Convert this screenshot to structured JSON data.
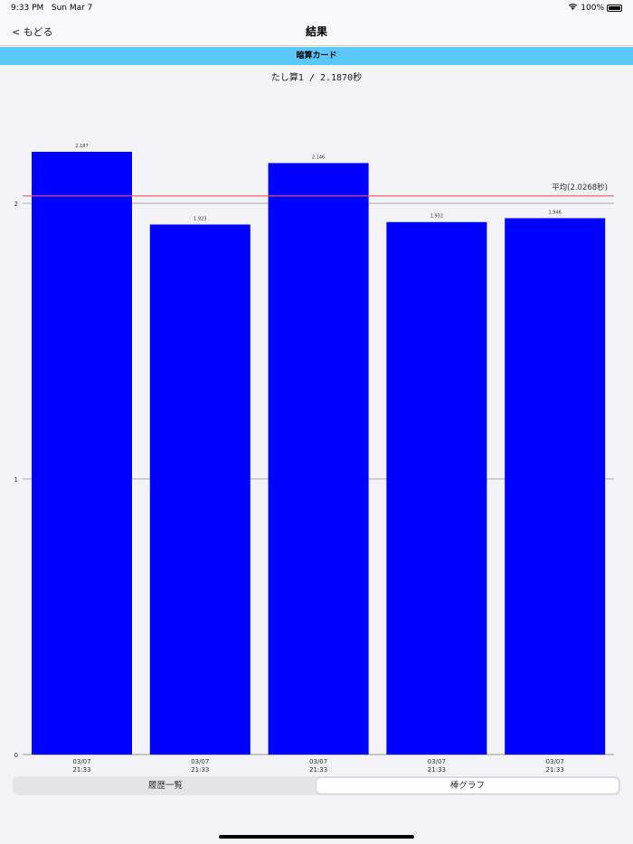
{
  "status_bar": {
    "time": "9:33 PM",
    "date": "Sun Mar 7",
    "battery": "100%",
    "wifi_icon": "wifi-icon",
    "battery_icon": "battery-icon"
  },
  "nav": {
    "back_label": "< もどる",
    "title": "結果"
  },
  "banner": "暗算カード",
  "subtitle": "たし算1 / 2.1870秒",
  "chart_data": {
    "type": "bar",
    "categories": [
      "03/07\n21:33",
      "03/07\n21:33",
      "03/07\n21:33",
      "03/07\n21:33",
      "03/07\n21:33"
    ],
    "values": [
      2.187,
      1.923,
      2.146,
      1.932,
      1.946
    ],
    "data_labels": [
      "2.187",
      "1.923",
      "2.146",
      "1.932",
      "1.946"
    ],
    "yticks": [
      0,
      1,
      2
    ],
    "ylim": [
      0,
      2.2
    ],
    "grid": true,
    "bar_color": "#0000ff",
    "average": {
      "value": 2.0268,
      "label": "平均(2.0268秒)",
      "color": "#e85a5a"
    }
  },
  "segments": [
    {
      "label": "履歴一覧",
      "selected": false
    },
    {
      "label": "棒グラフ",
      "selected": true
    }
  ]
}
